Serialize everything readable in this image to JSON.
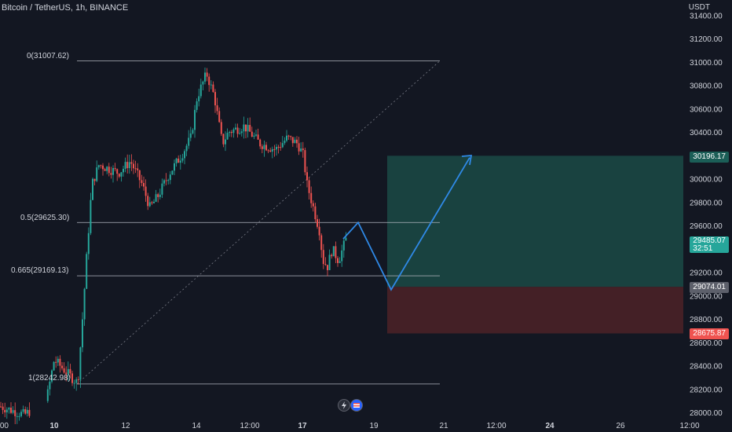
{
  "header": {
    "title": "Bitcoin / TetherUS, 1h, BINANCE"
  },
  "price_axis": {
    "currency": "USDT",
    "ticks": [
      "31400.00",
      "31200.00",
      "31000.00",
      "30800.00",
      "30600.00",
      "30400.00",
      "30000.00",
      "29800.00",
      "29600.00",
      "29200.00",
      "29000.00",
      "28800.00",
      "28600.00",
      "28400.00",
      "28200.00",
      "28000.00"
    ]
  },
  "time_axis": {
    "ticks": [
      ":00",
      "10",
      "12",
      "14",
      "12:00",
      "17",
      "19",
      "21",
      "12:00",
      "24",
      "26",
      "12:00"
    ]
  },
  "price_tags": {
    "target": "30196.17",
    "last": "29485.07",
    "countdown": "32:51",
    "entry": "29074.01",
    "stop": "28675.87"
  },
  "fibonacci": {
    "levels": [
      {
        "label": "0(31007.62)",
        "price": 31007.62
      },
      {
        "label": "0.5(29625.30)",
        "price": 29625.3
      },
      {
        "label": "0.665(29169.13)",
        "price": 29169.13
      },
      {
        "label": "1(28242.98)",
        "price": 28242.98
      }
    ]
  },
  "colors": {
    "background": "#131722",
    "up": "#26a69a",
    "down": "#ef5350",
    "profit_zone": "#1b4a45",
    "loss_zone": "#4a2127",
    "projection": "#2f89e6",
    "text": "#d1d4dc"
  },
  "icons": [
    "lightning-icon",
    "flag-icon"
  ]
}
